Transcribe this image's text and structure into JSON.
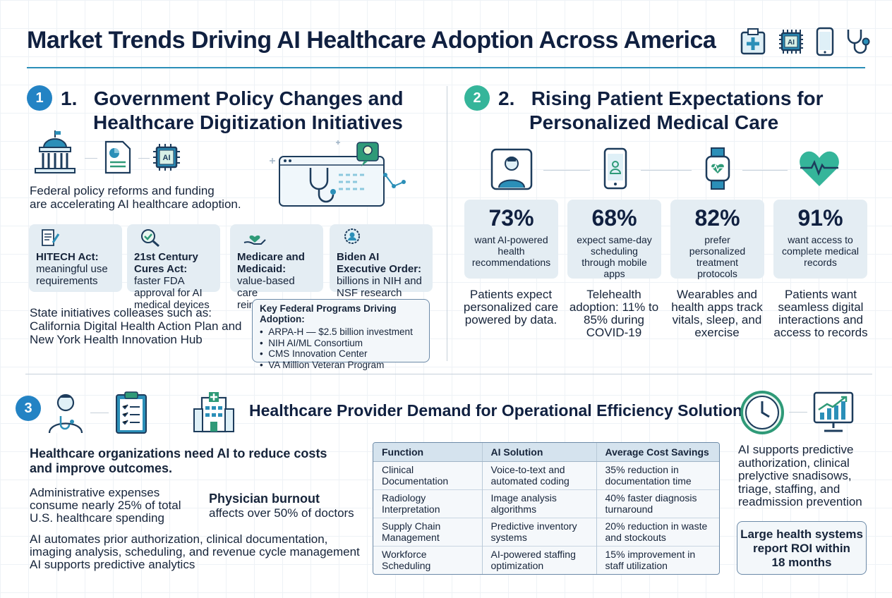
{
  "title": "Market Trends Driving AI Healthcare Adoption Across America",
  "header_icons": [
    "hospital-kit-icon",
    "ai-chip-icon",
    "smartphone-icon",
    "stethoscope-icon"
  ],
  "colors": {
    "accent": "#2b8fb8",
    "badge_blue": "#2383c4",
    "badge_teal": "#35b59a",
    "card_bg": "#e4edf3",
    "heading": "#102040"
  },
  "section1": {
    "badge": "1",
    "title_line1": "1.   Government Policy Changes and",
    "title_line2": "Healthcare Digitization Initiatives",
    "intro_line1": "Federal policy reforms and funding",
    "intro_line2": "are accelerating AI healthcare adoption.",
    "cards": [
      {
        "title": "HITECH Act:",
        "text": "meaningful use requirements",
        "icon": "document-pen-icon"
      },
      {
        "title": "21st Century Cures Act:",
        "text": "faster FDA approval for AI medical devices",
        "icon": "check-magnifier-icon"
      },
      {
        "title": "Medicare and Medicaid:",
        "text": "value-based care reimbursement",
        "icon": "heart-hand-icon"
      },
      {
        "title": "Biden AI Executive Order:",
        "text": "billions in NIH and NSF research grants",
        "icon": "seal-person-icon"
      }
    ],
    "state_line1": "State initiatives colleases such as:",
    "state_line2": "California Digital Health Action Plan and",
    "state_line3": "New York Health Innovation Hub",
    "programs_title": "Key Federal Programs Driving Adoption:",
    "programs": [
      "ARPA-H — $2.5 billion investment",
      "NIH AI/ML Consortium",
      "CMS Innovation Center",
      "VA Million Veteran Program"
    ]
  },
  "section2": {
    "badge": "2",
    "title_line1": "2.   Rising Patient Expectations for",
    "title_line2": "Personalized Medical Care",
    "stats": [
      {
        "value": "73%",
        "text": "want AI-powered health recommendations",
        "note": "Patients expect personalized care powered by data.",
        "icon": "patient-icon"
      },
      {
        "value": "68%",
        "text": "expect same-day scheduling through mobile apps",
        "note": "Telehealth adoption: 11% to 85% during COVID-19",
        "icon": "phone-user-icon"
      },
      {
        "value": "82%",
        "text": "prefer personalized treatment protocols",
        "note": "Wearables and health apps track vitals, sleep, and exercise",
        "icon": "smartwatch-icon"
      },
      {
        "value": "91%",
        "text": "want access to complete medical records",
        "note": "Patients want seamless digital interactions and access to records",
        "icon": "heart-pulse-icon"
      }
    ]
  },
  "section3": {
    "badge": "3",
    "title": "Healthcare Provider Demand for Operational Efficiency Solutions",
    "lead_line1": "Healthcare organizations need AI to reduce costs",
    "lead_line2": "and improve outcomes.",
    "admin_line1": "Administrative expenses",
    "admin_line2": "consume nearly 25% of total",
    "admin_line3": "U.S. healthcare spending",
    "burnout_title": "Physician burnout",
    "burnout_text": "affects over 50% of doctors",
    "automates_line1": "AI automates prior authorization, clinical documentation,",
    "automates_line2": "imaging analysis, scheduling, and revenue cycle management",
    "predictive": "AI supports predictive analytics",
    "table": {
      "headers": [
        "Function",
        "AI Solution",
        "Average Cost Savings"
      ],
      "rows": [
        [
          "Clinical Documentation",
          "Voice-to-text and automated coding",
          "35% reduction in documentation time"
        ],
        [
          "Radiology Interpretation",
          "Image analysis algorithms",
          "40% faster diagnosis turnaround"
        ],
        [
          "Supply Chain Management",
          "Predictive inventory systems",
          "20% reduction in waste and stockouts"
        ],
        [
          "Workforce Scheduling",
          "AI-powered staffing optimization",
          "15% improvement in staff utilization"
        ]
      ]
    },
    "right_line1": "AI supports predictive",
    "right_line2": "authorization, clinical",
    "right_line3": "prelyctive snadisows,",
    "right_line4": "triage, staffing, and",
    "right_line5": "readmission prevention",
    "roi_line1": "Large health systems",
    "roi_line2": "report ROI within",
    "roi_line3": "18 months"
  }
}
